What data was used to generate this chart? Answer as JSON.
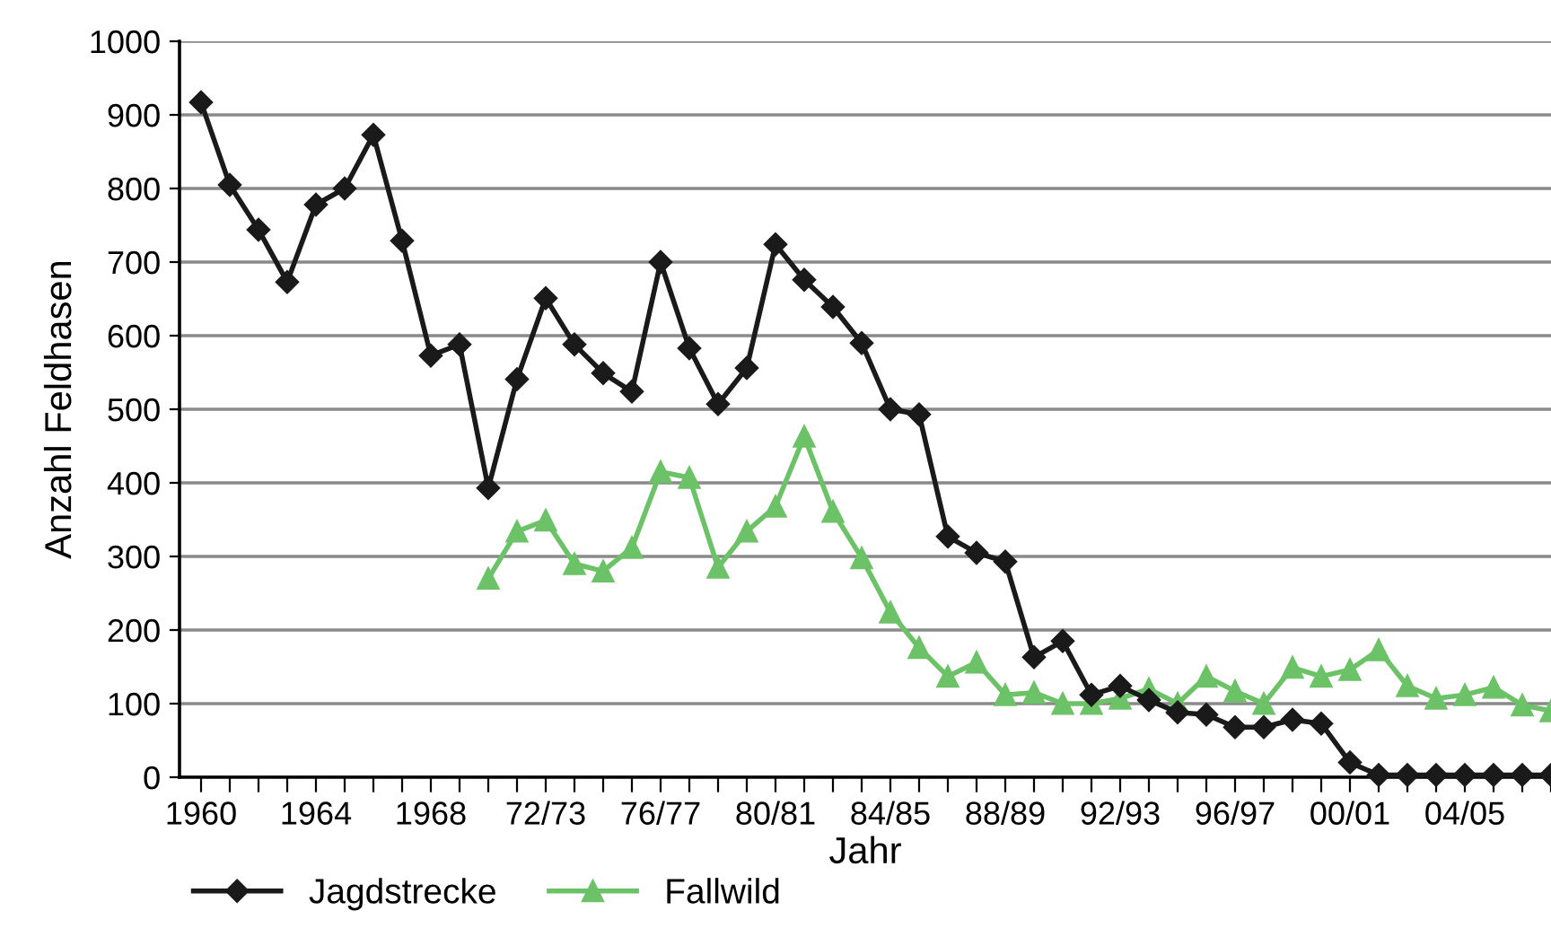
{
  "chart_data": {
    "type": "line",
    "xlabel": "Jahr",
    "ylabel": "Anzahl Feldhasen",
    "categories": [
      "1960",
      null,
      null,
      null,
      "1964",
      null,
      null,
      null,
      "1968",
      null,
      null,
      null,
      "72/73",
      null,
      null,
      null,
      "76/77",
      null,
      null,
      null,
      "80/81",
      null,
      null,
      null,
      "84/85",
      null,
      null,
      null,
      "88/89",
      null,
      null,
      null,
      "92/93",
      null,
      null,
      null,
      "96/97",
      null,
      null,
      null,
      "00/01",
      null,
      null,
      null,
      "04/05",
      null,
      null,
      null
    ],
    "series": [
      {
        "name": "Jagdstrecke",
        "color": "#1a1a1a",
        "marker": "diamond",
        "values": [
          917,
          805,
          744,
          673,
          778,
          800,
          873,
          729,
          573,
          588,
          393,
          541,
          651,
          588,
          549,
          524,
          700,
          583,
          507,
          556,
          724,
          676,
          639,
          590,
          500,
          493,
          327,
          305,
          293,
          163,
          185,
          112,
          124,
          105,
          88,
          85,
          68,
          68,
          78,
          73,
          20,
          3,
          3,
          3,
          3,
          3,
          3,
          3
        ]
      },
      {
        "name": "Fallwild",
        "color": "#6cc266",
        "marker": "triangle",
        "values": [
          null,
          null,
          null,
          null,
          null,
          null,
          null,
          null,
          null,
          null,
          270,
          334,
          349,
          290,
          280,
          312,
          415,
          407,
          285,
          334,
          368,
          463,
          361,
          298,
          224,
          176,
          137,
          156,
          112,
          115,
          100,
          100,
          107,
          120,
          100,
          137,
          117,
          100,
          149,
          137,
          146,
          173,
          124,
          107,
          112,
          122,
          98,
          90
        ]
      }
    ],
    "ylim": [
      0,
      1000
    ],
    "yticks": [
      0,
      100,
      200,
      300,
      400,
      500,
      600,
      700,
      800,
      900,
      1000
    ],
    "grid": "y",
    "legend": "bottom",
    "line_style": "solid"
  }
}
